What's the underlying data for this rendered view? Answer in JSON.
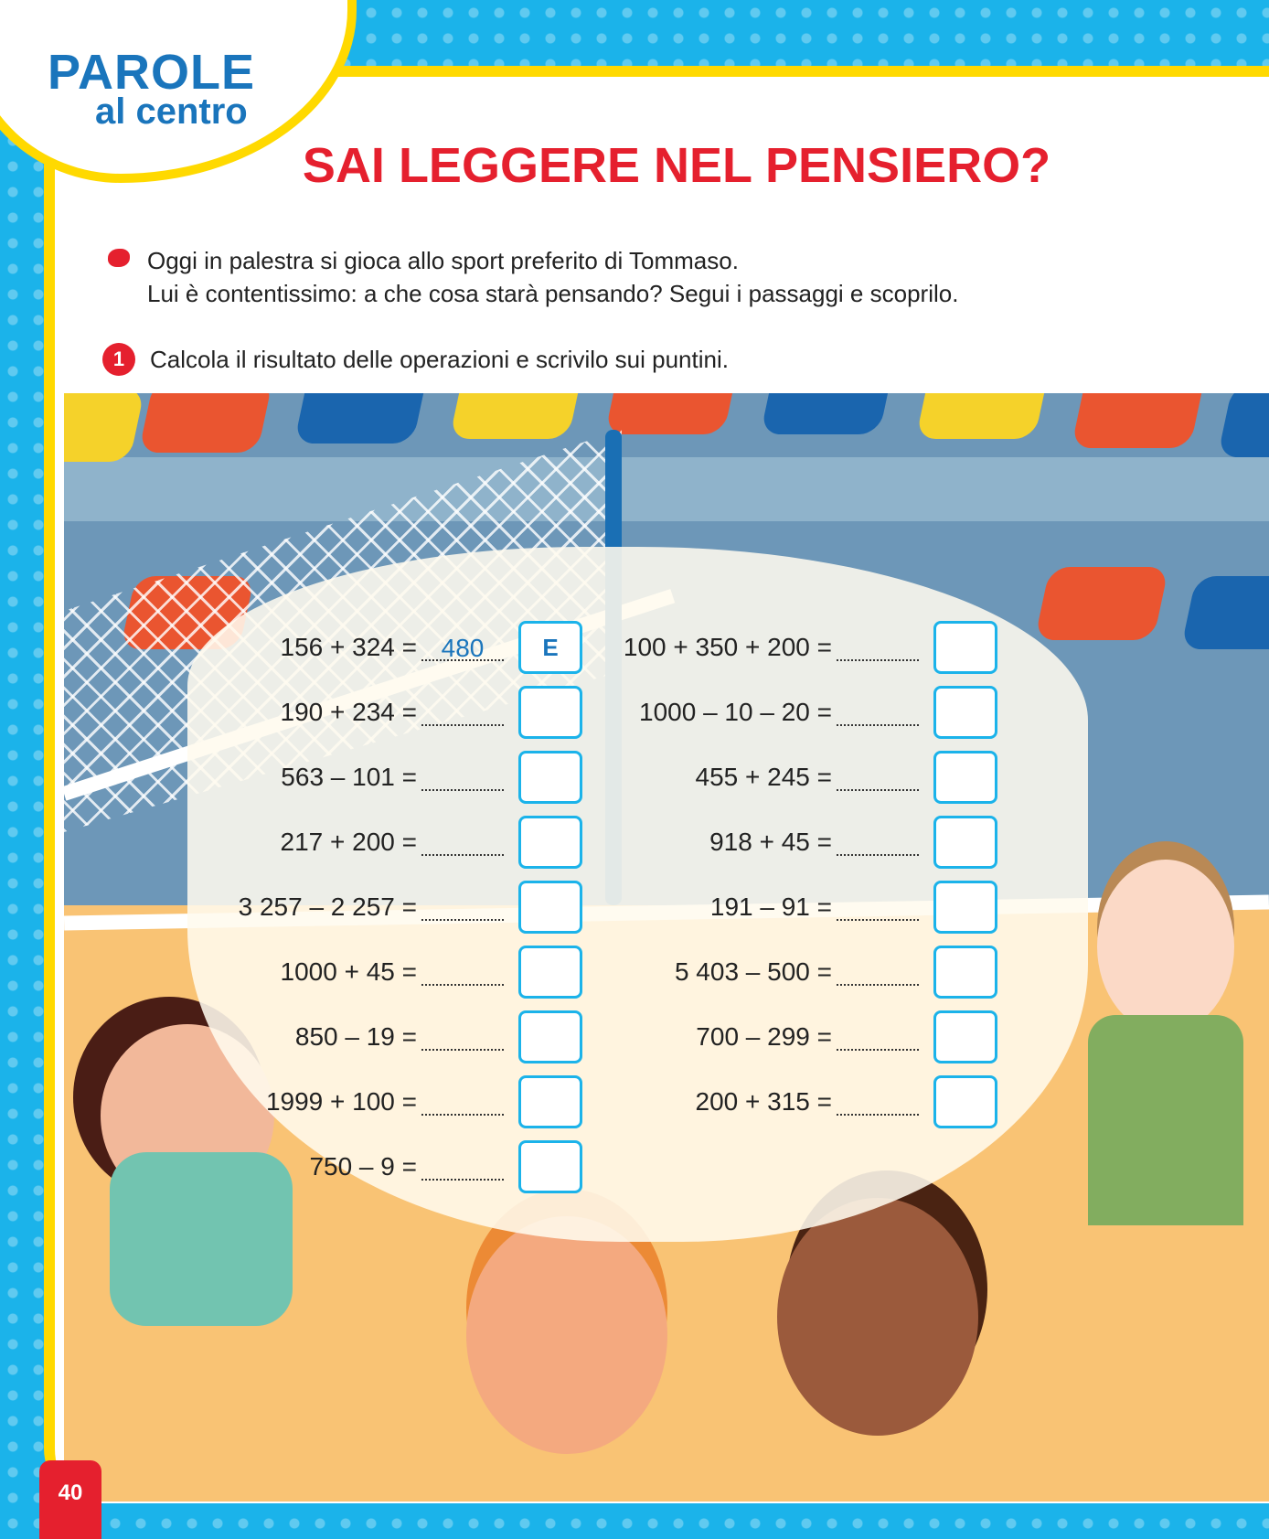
{
  "logo": {
    "line1": "PAROLE",
    "line2": "al centro"
  },
  "title": "SAI LEGGERE NEL PENSIERO?",
  "intro": [
    "Oggi in palestra si gioca allo sport preferito di Tommaso.",
    "Lui è contentissimo: a che cosa starà pensando? Segui i passaggi e scoprilo."
  ],
  "step": {
    "number": "1",
    "text": "Calcola il risultato delle operazioni e scrivilo sui puntini."
  },
  "left": [
    {
      "op": "156 + 324 =",
      "answer": "480",
      "letter": "E"
    },
    {
      "op": "190 + 234 =",
      "answer": "",
      "letter": ""
    },
    {
      "op": "563 – 101 =",
      "answer": "",
      "letter": ""
    },
    {
      "op": "217 + 200 =",
      "answer": "",
      "letter": ""
    },
    {
      "op": "3 257 – 2 257 =",
      "answer": "",
      "letter": ""
    },
    {
      "op": "1000 + 45 =",
      "answer": "",
      "letter": ""
    },
    {
      "op": "850 – 19 =",
      "answer": "",
      "letter": ""
    },
    {
      "op": "1999 + 100 =",
      "answer": "",
      "letter": ""
    },
    {
      "op": "750 – 9 =",
      "answer": "",
      "letter": ""
    }
  ],
  "right": [
    {
      "op": "100 + 350 + 200 =",
      "answer": "",
      "letter": ""
    },
    {
      "op": "1000 – 10 – 20 =",
      "answer": "",
      "letter": ""
    },
    {
      "op": "455 + 245 =",
      "answer": "",
      "letter": ""
    },
    {
      "op": "918 + 45 =",
      "answer": "",
      "letter": ""
    },
    {
      "op": "191 – 91 =",
      "answer": "",
      "letter": ""
    },
    {
      "op": "5 403 – 500 =",
      "answer": "",
      "letter": ""
    },
    {
      "op": "700 – 299 =",
      "answer": "",
      "letter": ""
    },
    {
      "op": "200 + 315 =",
      "answer": "",
      "letter": ""
    }
  ],
  "page_number": "40",
  "colors": {
    "title": "#e5202e",
    "accent": "#1bb3ea",
    "frame": "#ffd900",
    "answer": "#1a75bc"
  }
}
